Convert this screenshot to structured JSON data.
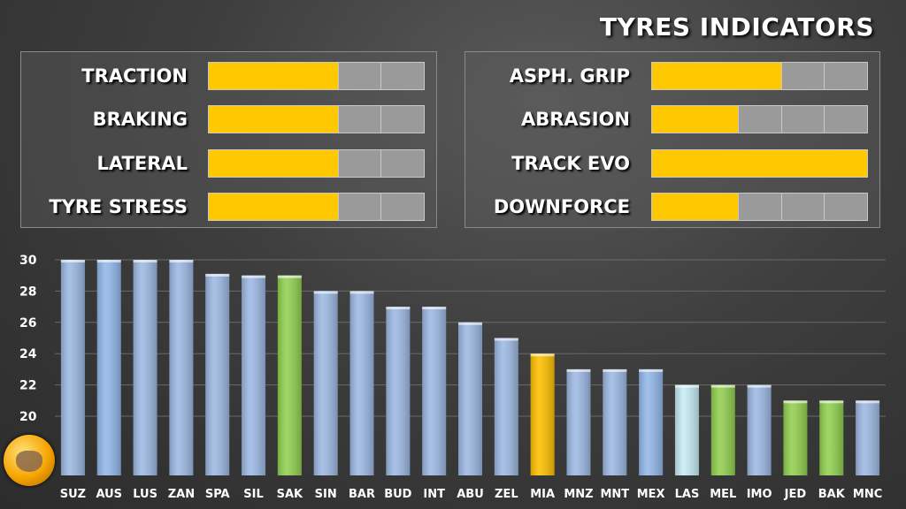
{
  "title": "TYRES INDICATORS",
  "indicators": {
    "left": [
      {
        "label": "TRACTION",
        "level": 3,
        "max": 5
      },
      {
        "label": "BRAKING",
        "level": 3,
        "max": 5
      },
      {
        "label": "LATERAL",
        "level": 3,
        "max": 5
      },
      {
        "label": "TYRE STRESS",
        "level": 3,
        "max": 5
      }
    ],
    "right": [
      {
        "label": "ASPH. GRIP",
        "level": 3,
        "max": 5
      },
      {
        "label": "ABRASION",
        "level": 2,
        "max": 5
      },
      {
        "label": "TRACK EVO",
        "level": 5,
        "max": 5
      },
      {
        "label": "DOWNFORCE",
        "level": 2,
        "max": 5
      }
    ]
  },
  "colors": {
    "indicator_fill": "#ffc800",
    "indicator_empty": "#9a9a9a",
    "bar_blue": "#9db9e3",
    "bar_green": "#92d050",
    "bar_yellow": "#ffc000",
    "bar_cyan": "#c6ecf5"
  },
  "logo_icon": "cat-helmet-logo-icon",
  "chart_data": {
    "type": "bar",
    "categories": [
      "SUZ",
      "AUS",
      "LUS",
      "ZAN",
      "SPA",
      "SIL",
      "SAK",
      "SIN",
      "BAR",
      "BUD",
      "INT",
      "ABU",
      "ZEL",
      "MIA",
      "MNZ",
      "MNT",
      "MEX",
      "LAS",
      "MEL",
      "IMO",
      "JED",
      "BAK",
      "MNC"
    ],
    "values": [
      30,
      30,
      30,
      30,
      29.1,
      29,
      29,
      28,
      28,
      27,
      27,
      26,
      25,
      24,
      23,
      23,
      23,
      22,
      22,
      22,
      21,
      21,
      21
    ],
    "bar_colors": [
      "#9db9e3",
      "#93b8ea",
      "#9db9e3",
      "#9db9e3",
      "#9db9e3",
      "#9db9e3",
      "#92d050",
      "#9db9e3",
      "#9db9e3",
      "#9db9e3",
      "#9db9e3",
      "#9db9e3",
      "#9db9e3",
      "#ffc000",
      "#9db9e3",
      "#9db9e3",
      "#93b8ea",
      "#c6ecf5",
      "#92d050",
      "#9db9e3",
      "#92d050",
      "#92d050",
      "#9db9e3"
    ],
    "yticks": [
      20,
      22,
      24,
      26,
      28,
      30
    ],
    "ylim": [
      17.3,
      30.3
    ],
    "grid": true,
    "legend": "none"
  }
}
